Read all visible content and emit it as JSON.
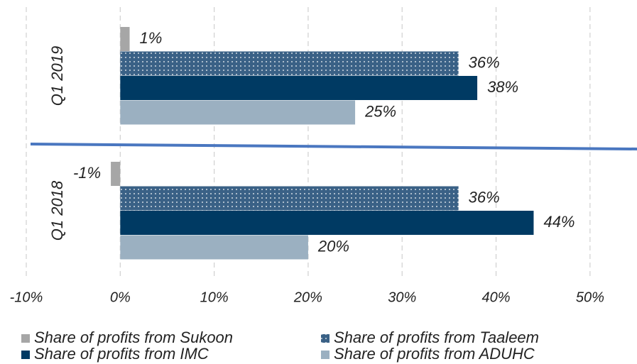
{
  "chart_data": {
    "type": "barh",
    "categories": [
      "Q1 2019",
      "Q1 2018"
    ],
    "series": [
      {
        "name": "Share of profits from Sukoon",
        "color": "#a6a6a6",
        "values": [
          1,
          -1
        ],
        "value_labels": [
          "1%",
          "-1%"
        ]
      },
      {
        "name": "Share of profits from Taaleem",
        "color": "#3a6186",
        "pattern": "dots",
        "values": [
          36,
          36
        ],
        "value_labels": [
          "36%",
          "36%"
        ]
      },
      {
        "name": "Share of profits from IMC",
        "color": "#003a63",
        "values": [
          38,
          44
        ],
        "value_labels": [
          "38%",
          "44%"
        ]
      },
      {
        "name": "Share of profits from ADUHC",
        "color": "#9bb0c1",
        "values": [
          25,
          20
        ],
        "value_labels": [
          "25%",
          "20%"
        ]
      }
    ],
    "xlim": [
      -10,
      55
    ],
    "xticks": [
      {
        "value": -10,
        "label": "-10%"
      },
      {
        "value": 0,
        "label": "0%"
      },
      {
        "value": 10,
        "label": "10%"
      },
      {
        "value": 20,
        "label": "20%"
      },
      {
        "value": 30,
        "label": "30%"
      },
      {
        "value": 40,
        "label": "40%"
      },
      {
        "value": 50,
        "label": "50%"
      }
    ],
    "grid": true,
    "legend": "bottom"
  }
}
